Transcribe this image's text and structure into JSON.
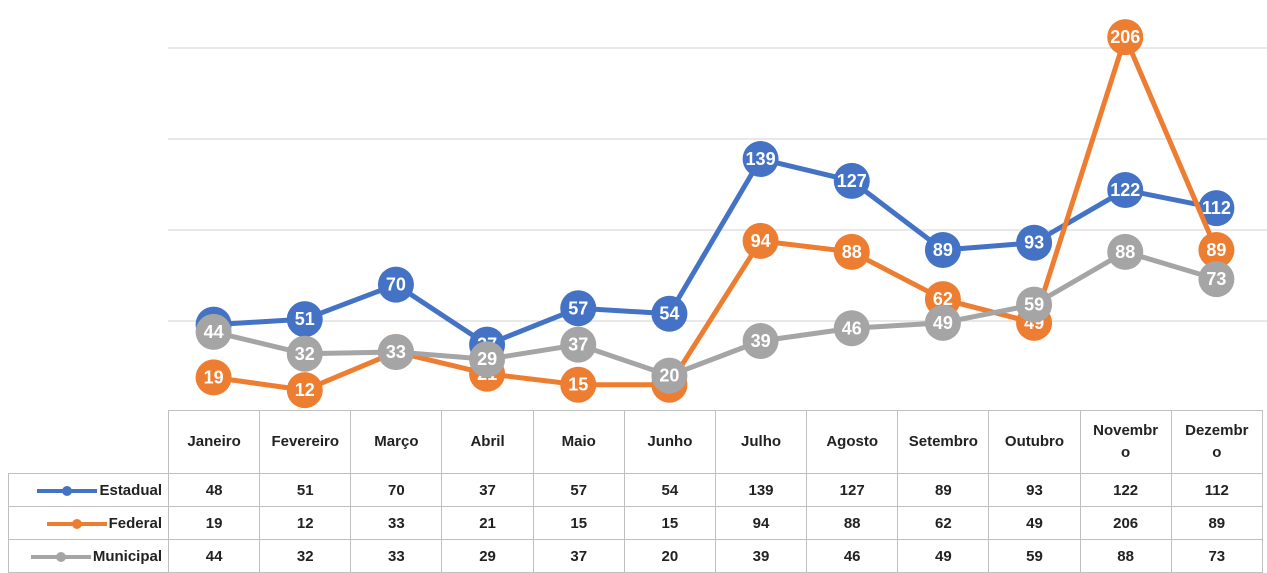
{
  "chart_data": {
    "type": "line",
    "categories": [
      "Janeiro",
      "Fevereiro",
      "Março",
      "Abril",
      "Maio",
      "Junho",
      "Julho",
      "Agosto",
      "Setembro",
      "Outubro",
      "Novembro",
      "Dezembro"
    ],
    "series": [
      {
        "name": "Estadual",
        "color": "#4472c4",
        "values": [
          48,
          51,
          70,
          37,
          57,
          54,
          139,
          127,
          89,
          93,
          122,
          112
        ]
      },
      {
        "name": "Federal",
        "color": "#ed7d31",
        "values": [
          19,
          12,
          33,
          21,
          15,
          15,
          94,
          88,
          62,
          49,
          206,
          89
        ]
      },
      {
        "name": "Municipal",
        "color": "#a5a5a5",
        "values": [
          44,
          32,
          33,
          29,
          37,
          20,
          39,
          46,
          49,
          59,
          88,
          73
        ]
      }
    ],
    "ylim": [
      0,
      200
    ],
    "yticks": [
      0,
      50,
      100,
      150,
      200
    ],
    "grid": true
  }
}
